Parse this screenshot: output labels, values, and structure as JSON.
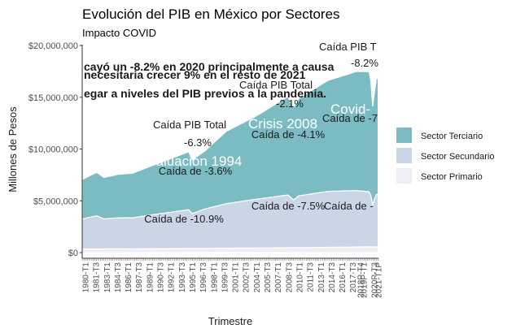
{
  "chart_data": {
    "type": "area",
    "title": "Evolución del PIB en México por Sectores",
    "subtitle": "Impacto COVID",
    "xlabel": "Trimestre",
    "ylabel": "Millones de Pesos",
    "ylim": [
      0,
      20000000
    ],
    "y_ticks": [
      "$0",
      "$5,000,000",
      "$10,000,000",
      "$15,000,000",
      "$20,000,000"
    ],
    "y_tick_values": [
      0,
      5000000,
      10000000,
      15000000,
      20000000
    ],
    "x_ticks": [
      "1980-T1",
      "1981-T3",
      "1983-T1",
      "1984-T3",
      "1986-T1",
      "1987-T3",
      "1989-T1",
      "1990-T3",
      "1992-T1",
      "1993-T3",
      "1995-T1",
      "1996-T3",
      "1998-T1",
      "1999-T3",
      "2001-T1",
      "2002-T3",
      "2004-T1",
      "2005-T3",
      "2007-T1",
      "2008-T3",
      "2010-T1",
      "2011-T3",
      "2013-T1",
      "2014-T3",
      "2016-T1",
      "2017-T3",
      "2019P-T1",
      "2020P-T3"
    ],
    "x_ticks_extra": [
      "2018P-T4",
      "2021-T1P"
    ],
    "legend_position": "right",
    "grid": false,
    "colors": {
      "Sector Terciario": "#7bbcc3",
      "Sector Secundario": "#cad5e6",
      "Sector Primario": "#f0eef5"
    },
    "series": [
      {
        "name": "Sector Primario",
        "type": "stacked-area",
        "x": [
          1980,
          1985,
          1990,
          1995,
          2000,
          2005,
          2010,
          2015,
          2019.9,
          2020.3,
          2020.6,
          2021.0
        ],
        "values": [
          350000,
          360000,
          380000,
          400000,
          430000,
          450000,
          480000,
          520000,
          560000,
          540000,
          560000,
          570000
        ]
      },
      {
        "name": "Sector Secundario",
        "type": "stacked-area",
        "x": [
          1980,
          1982,
          1983,
          1985,
          1987,
          1990,
          1994.8,
          1995.2,
          1997,
          2000,
          2004,
          2008.5,
          2009.3,
          2010,
          2014,
          2018,
          2019.9,
          2020.3,
          2020.6,
          2021.0
        ],
        "values": [
          2900000,
          3200000,
          2900000,
          3000000,
          3000000,
          3300000,
          3750000,
          3350000,
          3800000,
          4300000,
          4700000,
          5100000,
          4600000,
          5000000,
          5400000,
          5450000,
          5300000,
          3900000,
          5000000,
          5100000
        ]
      },
      {
        "name": "Sector Terciario",
        "type": "stacked-area",
        "x": [
          1980,
          1982,
          1983,
          1985,
          1987,
          1990,
          1994.8,
          1995.2,
          1997,
          2000,
          2004,
          2008.5,
          2009.3,
          2010,
          2014,
          2018,
          2019.9,
          2020.3,
          2020.6,
          2021.0
        ],
        "values": [
          3800000,
          4200000,
          4000000,
          4200000,
          4300000,
          4800000,
          5600000,
          5200000,
          5600000,
          7000000,
          8000000,
          9500000,
          8900000,
          9400000,
          10700000,
          11500000,
          11600000,
          9200000,
          10900000,
          11400000
        ]
      }
    ],
    "annotations": [
      {
        "text": "Caída de -10.9%",
        "style": "dark"
      },
      {
        "text": "Caída de -7.5%",
        "style": "dark"
      },
      {
        "text": "Caída de -",
        "style": "dark"
      },
      {
        "text": "Caída de -3.6%",
        "style": "dark"
      },
      {
        "text": "Caída de -4.1%",
        "style": "dark"
      },
      {
        "text": "Caída de -7",
        "style": "dark"
      },
      {
        "text": "Caída PIB Total",
        "style": "dark"
      },
      {
        "text": "-6.3%",
        "style": "dark"
      },
      {
        "text": "Caída PIB Total",
        "style": "dark"
      },
      {
        "text": "-2.1%",
        "style": "dark"
      },
      {
        "text": "Caída PIB T",
        "style": "dark"
      },
      {
        "text": "-8.2%",
        "style": "dark"
      },
      {
        "text": "valuación 1994",
        "style": "white"
      },
      {
        "text": "Crisis 2008",
        "style": "white"
      },
      {
        "text": "Covid-",
        "style": "white"
      },
      {
        "text": "cayó un -8.2% en 2020 principalmente a causa",
        "style": "bold"
      },
      {
        "text": "necesitaria crecer 9% en el resto de 2021",
        "style": "bold"
      },
      {
        "text": "egar a niveles del PIB previos a la pandemia.",
        "style": "bold"
      }
    ]
  }
}
